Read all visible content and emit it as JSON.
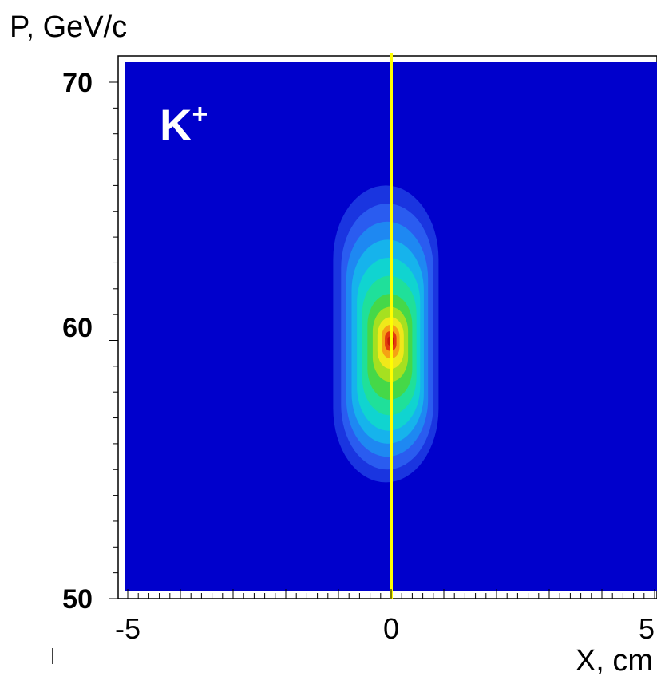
{
  "chart_data": {
    "type": "heatmap",
    "title": "",
    "xlabel": "X, cm",
    "ylabel": "P, GeV/c",
    "xlim": [
      -5,
      5
    ],
    "ylim": [
      50,
      71
    ],
    "x_ticks": [
      "-5",
      "0",
      "5"
    ],
    "y_ticks": [
      "50",
      "60",
      "70"
    ],
    "annotation_main": "K",
    "annotation_sup": "+",
    "colors": {
      "background": "#0000cc",
      "marker_line": "#ffff00"
    },
    "marker_x": 0,
    "peak": {
      "x": 0,
      "y": 60
    },
    "contour_levels": [
      {
        "level": 1,
        "color": "#1a35e0",
        "x": [
          -1.1,
          0.9
        ],
        "y": [
          54.5,
          66.0
        ]
      },
      {
        "level": 2,
        "color": "#2a5cf0",
        "x": [
          -0.95,
          0.8
        ],
        "y": [
          55.0,
          65.3
        ]
      },
      {
        "level": 3,
        "color": "#1e88f2",
        "x": [
          -0.85,
          0.7
        ],
        "y": [
          55.5,
          64.6
        ]
      },
      {
        "level": 4,
        "color": "#16b3ec",
        "x": [
          -0.75,
          0.62
        ],
        "y": [
          56.0,
          63.9
        ]
      },
      {
        "level": 5,
        "color": "#10d4d0",
        "x": [
          -0.65,
          0.55
        ],
        "y": [
          56.5,
          63.2
        ]
      },
      {
        "level": 6,
        "color": "#1fe09a",
        "x": [
          -0.55,
          0.48
        ],
        "y": [
          57.1,
          62.5
        ]
      },
      {
        "level": 7,
        "color": "#45d848",
        "x": [
          -0.45,
          0.4
        ],
        "y": [
          57.7,
          61.8
        ]
      },
      {
        "level": 8,
        "color": "#a6e020",
        "x": [
          -0.35,
          0.32
        ],
        "y": [
          58.4,
          61.3
        ]
      },
      {
        "level": 9,
        "color": "#f0e81a",
        "x": [
          -0.26,
          0.24
        ],
        "y": [
          58.9,
          60.9
        ]
      },
      {
        "level": 10,
        "color": "#f5a214",
        "x": [
          -0.18,
          0.16
        ],
        "y": [
          59.3,
          60.6
        ]
      },
      {
        "level": 11,
        "color": "#e23a0e",
        "x": [
          -0.12,
          0.1
        ],
        "y": [
          59.6,
          60.35
        ]
      },
      {
        "level": 12,
        "color": "#c81a08",
        "x": [
          -0.07,
          0.05
        ],
        "y": [
          59.8,
          60.15
        ]
      }
    ]
  }
}
